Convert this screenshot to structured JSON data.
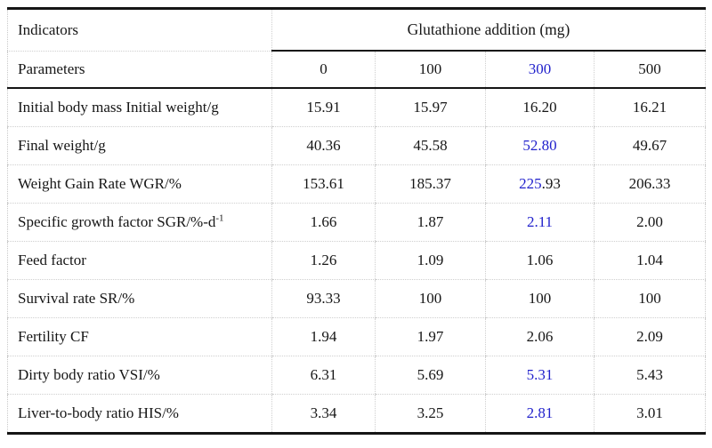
{
  "meta": {
    "accent_color": "#2222cc",
    "text_color": "#161616"
  },
  "table": {
    "corner": {
      "row1": "Indicators",
      "row2": "Parameters"
    },
    "group_header": "Glutathione addition (mg)",
    "doses": [
      [
        {
          "t": "0"
        }
      ],
      [
        {
          "t": "100"
        }
      ],
      [
        {
          "t": "300",
          "blue": true
        }
      ],
      [
        {
          "t": "500"
        }
      ]
    ],
    "rows": [
      {
        "label": [
          {
            "t": "Initial body mass Initial weight/g"
          }
        ],
        "values": [
          [
            {
              "t": "15.91"
            }
          ],
          [
            {
              "t": "15.97"
            }
          ],
          [
            {
              "t": "16.20"
            }
          ],
          [
            {
              "t": "16.21"
            }
          ]
        ]
      },
      {
        "label": [
          {
            "t": "Final weight/g"
          }
        ],
        "values": [
          [
            {
              "t": "40.36"
            }
          ],
          [
            {
              "t": "45.58"
            }
          ],
          [
            {
              "t": "52.80",
              "blue": true
            }
          ],
          [
            {
              "t": "49.67"
            }
          ]
        ]
      },
      {
        "label": [
          {
            "t": "Weight Gain Rate WGR/%"
          }
        ],
        "values": [
          [
            {
              "t": "153.61"
            }
          ],
          [
            {
              "t": "185.37"
            }
          ],
          [
            {
              "t": "225",
              "blue": true
            },
            {
              "t": ".93"
            }
          ],
          [
            {
              "t": "206.33"
            }
          ]
        ]
      },
      {
        "label": [
          {
            "t": "Specific growth factor SGR/%-d"
          },
          {
            "t": "-1",
            "sup": true
          }
        ],
        "values": [
          [
            {
              "t": "1.66"
            }
          ],
          [
            {
              "t": "1.87"
            }
          ],
          [
            {
              "t": "2.11",
              "blue": true
            }
          ],
          [
            {
              "t": "2.00"
            }
          ]
        ]
      },
      {
        "label": [
          {
            "t": "Feed factor"
          }
        ],
        "values": [
          [
            {
              "t": "1.26"
            }
          ],
          [
            {
              "t": "1.09"
            }
          ],
          [
            {
              "t": "1.06"
            }
          ],
          [
            {
              "t": "1.04"
            }
          ]
        ]
      },
      {
        "label": [
          {
            "t": "Survival rate SR/%"
          }
        ],
        "values": [
          [
            {
              "t": "93.33"
            }
          ],
          [
            {
              "t": "100"
            }
          ],
          [
            {
              "t": "100"
            }
          ],
          [
            {
              "t": "100"
            }
          ]
        ]
      },
      {
        "label": [
          {
            "t": "Fertility CF"
          }
        ],
        "values": [
          [
            {
              "t": "1.94"
            }
          ],
          [
            {
              "t": "1.97"
            }
          ],
          [
            {
              "t": "2.06"
            }
          ],
          [
            {
              "t": "2.09"
            }
          ]
        ]
      },
      {
        "label": [
          {
            "t": "Dirty body ratio VSI/%"
          }
        ],
        "values": [
          [
            {
              "t": "6.31"
            }
          ],
          [
            {
              "t": "5.69"
            }
          ],
          [
            {
              "t": "5.31",
              "blue": true
            }
          ],
          [
            {
              "t": "5.43"
            }
          ]
        ]
      },
      {
        "label": [
          {
            "t": "Liver-to-body ratio HIS/%"
          }
        ],
        "values": [
          [
            {
              "t": "3.34"
            }
          ],
          [
            {
              "t": "3.25"
            }
          ],
          [
            {
              "t": "2.81",
              "blue": true
            }
          ],
          [
            {
              "t": "3.01"
            }
          ]
        ]
      }
    ]
  }
}
